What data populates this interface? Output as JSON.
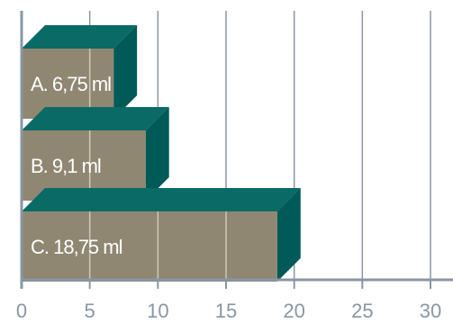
{
  "chart_data": {
    "type": "bar",
    "orientation": "horizontal",
    "style": "3d",
    "categories": [
      "A. 6,75 ml",
      "B. 9,1 ml",
      "C. 18,75 ml"
    ],
    "values": [
      6.75,
      9.1,
      18.75
    ],
    "x_ticks": [
      "0",
      "5",
      "10",
      "15",
      "20",
      "25",
      "30"
    ],
    "xlim": [
      0,
      30
    ],
    "grid": true,
    "colors": {
      "bar_front": "#8f8772",
      "bar_top": "#0a6a66",
      "bar_side": "#005a57",
      "grid": "#8a96a3",
      "axis": "#8a96a3",
      "bar_gridline": "#cdc7b5"
    }
  }
}
